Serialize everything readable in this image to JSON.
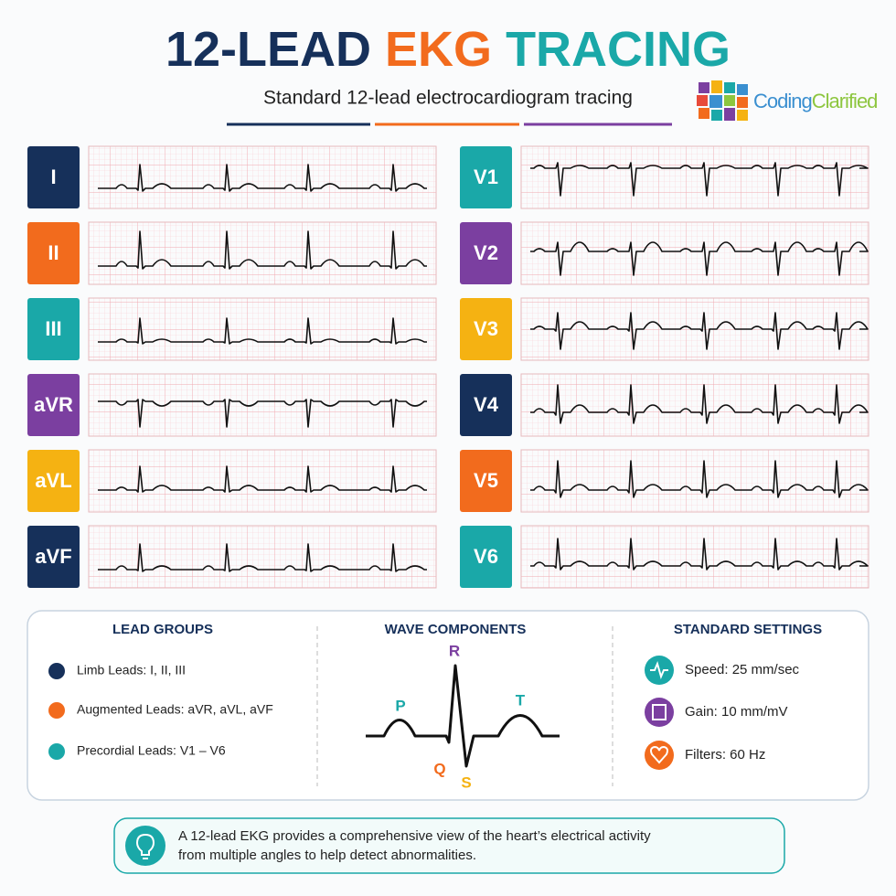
{
  "header": {
    "title": [
      "12-LEAD",
      "EKG",
      "TRACING"
    ],
    "subtitle": "Standard 12-lead electrocardiogram tracing",
    "logo": [
      "Coding",
      "Clarified"
    ]
  },
  "leads": {
    "left": [
      "I",
      "II",
      "III",
      "aVR",
      "aVL",
      "aVF"
    ],
    "right": [
      "V1",
      "V2",
      "V3",
      "V4",
      "V5",
      "V6"
    ]
  },
  "lead_groups": {
    "title": "LEAD GROUPS",
    "items": [
      "Limb Leads: I, II, III",
      "Augmented Leads: aVR, aVL, aVF",
      "Precordial Leads: V1 – V6"
    ]
  },
  "wave_components": {
    "title": "WAVE COMPONENTS",
    "labels": [
      "P",
      "Q",
      "R",
      "S",
      "T"
    ]
  },
  "standard_settings": {
    "title": "STANDARD SETTINGS",
    "items": [
      "Speed: 25 mm/sec",
      "Gain: 10 mm/mV",
      "Filters: 60 Hz"
    ]
  },
  "footer": {
    "lines": [
      "A 12-lead EKG provides a comprehensive view of the heart’s electrical activity",
      "from multiple angles to help detect abnormalities."
    ]
  }
}
